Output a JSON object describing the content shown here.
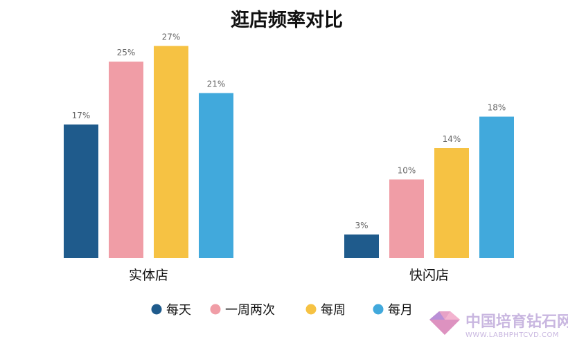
{
  "chart_data": {
    "type": "bar",
    "title": "逛店频率对比",
    "categories": [
      "实体店",
      "快闪店"
    ],
    "series": [
      {
        "name": "每天",
        "color": "#1f5b8c",
        "values": [
          17,
          3
        ]
      },
      {
        "name": "一周两次",
        "color": "#f09da6",
        "values": [
          25,
          10
        ]
      },
      {
        "name": "每周",
        "color": "#f6c243",
        "values": [
          27,
          14
        ]
      },
      {
        "name": "每月",
        "color": "#41a9dc",
        "values": [
          21,
          18
        ]
      }
    ],
    "value_suffix": "%",
    "ylim": [
      0,
      28
    ],
    "grid": false,
    "legend_position": "bottom"
  },
  "watermark": {
    "text": "中国培育钻石网",
    "url_text": "WWW.LABHPHTCVD.COM"
  }
}
